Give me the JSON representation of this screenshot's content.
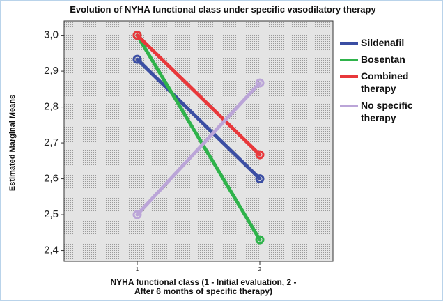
{
  "chart_data": {
    "type": "line",
    "title": "Evolution of NYHA functional class under specific vasodilatory therapy",
    "x_label": "NYHA functional class (1 - Initial evaluation, 2 - After 6 months of specific therapy)",
    "y_label": "Estimated Marginal Means",
    "categories": [
      "1",
      "2"
    ],
    "series": [
      {
        "name": "Sildenafil",
        "color": "#3b4ea3",
        "values": [
          2.933,
          2.6
        ]
      },
      {
        "name": "Bosentan",
        "color": "#2fb34b",
        "values": [
          3.0,
          2.43
        ]
      },
      {
        "name": "Combined therapy",
        "color": "#e8383b",
        "values": [
          3.0,
          2.667
        ]
      },
      {
        "name": "No specific therapy",
        "color": "#bba5d8",
        "values": [
          2.5,
          2.867
        ]
      }
    ],
    "ylim": [
      2.37,
      3.04
    ],
    "yticks": [
      {
        "value": 2.4,
        "label": "2,4"
      },
      {
        "value": 2.5,
        "label": "2,5"
      },
      {
        "value": 2.6,
        "label": "2,6"
      },
      {
        "value": 2.7,
        "label": "2,7"
      },
      {
        "value": 2.8,
        "label": "2,8"
      },
      {
        "value": 2.9,
        "label": "2,9"
      },
      {
        "value": 3.0,
        "label": "3,0"
      }
    ]
  }
}
